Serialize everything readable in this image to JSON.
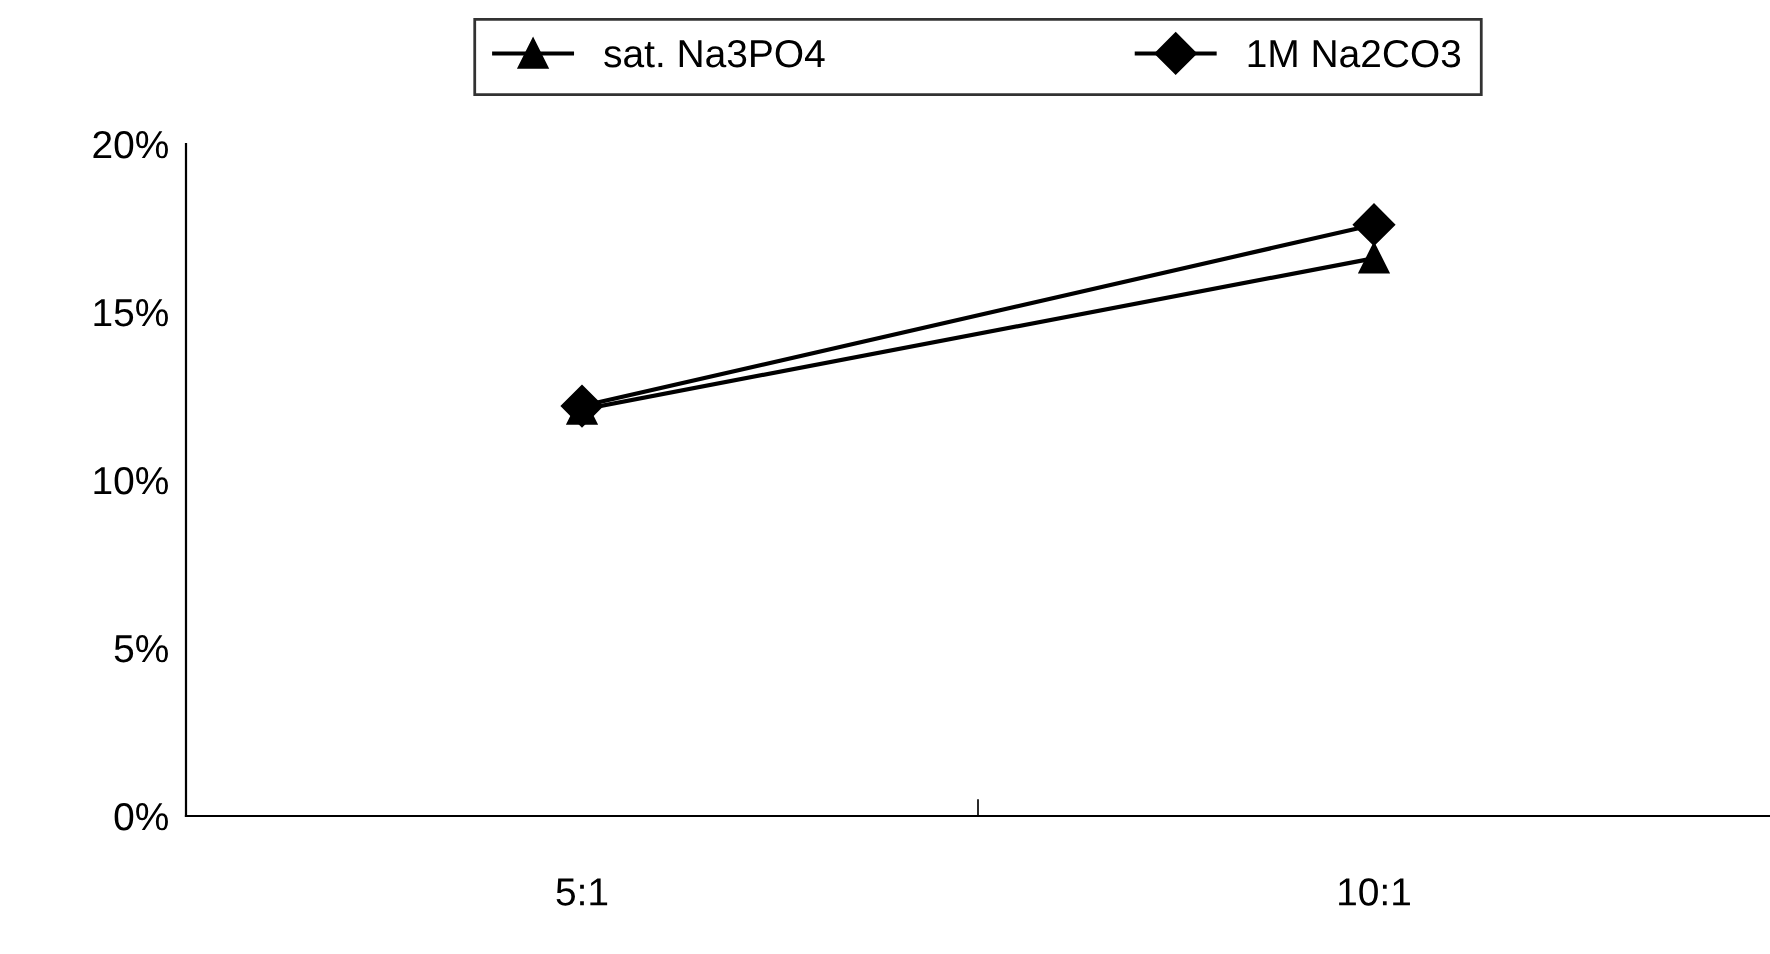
{
  "chart_data": {
    "type": "line",
    "categories": [
      "5:1",
      "10:1"
    ],
    "series": [
      {
        "name": "sat. Na3PO4",
        "color": "#000000",
        "marker": "triangle",
        "values": [
          12.1,
          16.6
        ]
      },
      {
        "name": "1M Na2CO3",
        "color": "#000000",
        "marker": "diamond",
        "values": [
          12.2,
          17.6
        ]
      }
    ],
    "ylim": [
      0,
      20
    ],
    "yticks": [
      {
        "value": 0,
        "label": "0%"
      },
      {
        "value": 5,
        "label": "5%"
      },
      {
        "value": 10,
        "label": "10%"
      },
      {
        "value": 15,
        "label": "15%"
      },
      {
        "value": 20,
        "label": "20%"
      }
    ],
    "grid": false,
    "legend": "top",
    "line_style": "solid"
  }
}
